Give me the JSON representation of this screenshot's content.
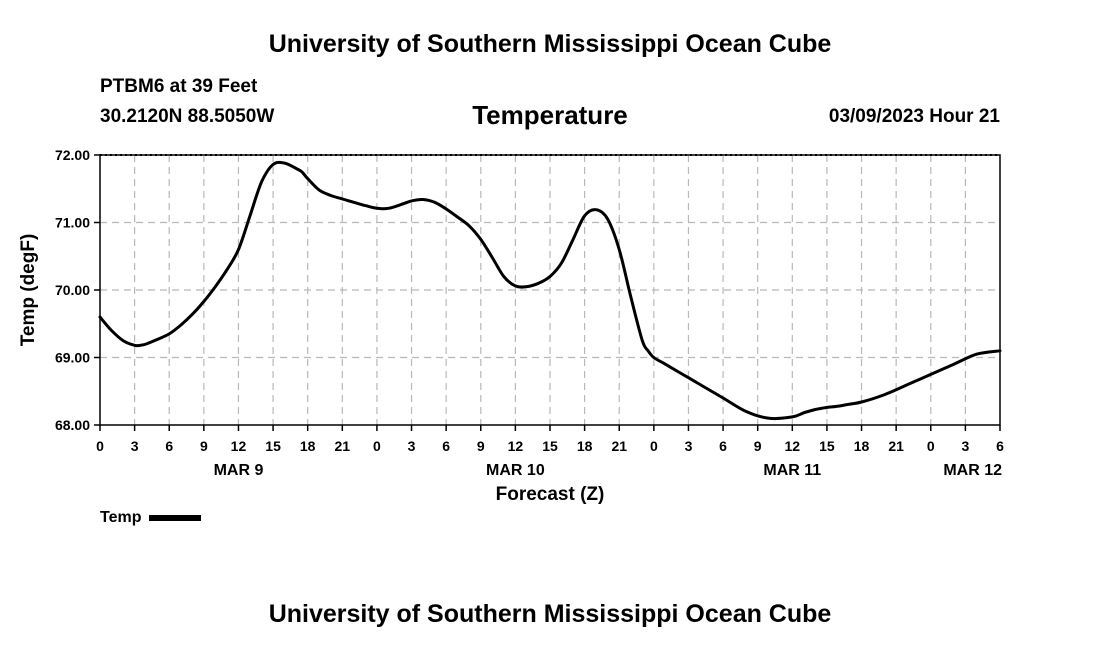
{
  "header": {
    "title": "University of Southern Mississippi Ocean Cube",
    "station": "PTBM6 at 39 Feet",
    "coords": "30.2120N  88.5050W",
    "variable": "Temperature",
    "datetime": "03/09/2023 Hour 21"
  },
  "footer": {
    "title": "University of Southern Mississippi Ocean Cube"
  },
  "legend": {
    "label": "Temp"
  },
  "chart_data": {
    "type": "line",
    "title": "Temperature",
    "xlabel": "Forecast (Z)",
    "ylabel": "Temp (degF)",
    "ylim": [
      68.0,
      72.0
    ],
    "xlim_hours": [
      0,
      78
    ],
    "grid": true,
    "y_ticks": [
      "68.00",
      "69.00",
      "70.00",
      "71.00",
      "72.00"
    ],
    "y_tick_values": [
      68,
      69,
      70,
      71,
      72
    ],
    "x_tick_labels": [
      "0",
      "3",
      "6",
      "9",
      "12",
      "15",
      "18",
      "21",
      "0",
      "3",
      "6",
      "9",
      "12",
      "15",
      "18",
      "21",
      "0",
      "3",
      "6",
      "9",
      "12",
      "15",
      "18",
      "21",
      "0",
      "3",
      "6"
    ],
    "date_labels": [
      {
        "label": "MAR 9",
        "hour": 12
      },
      {
        "label": "MAR 10",
        "hour": 36
      },
      {
        "label": "MAR 11",
        "hour": 60
      },
      {
        "label": "MAR 12",
        "hour": 78
      }
    ],
    "series": [
      {
        "name": "Temp",
        "color": "#000000",
        "x_hours": [
          0,
          1,
          2,
          3,
          3.5,
          4,
          5,
          6,
          7,
          8,
          9,
          10,
          11,
          12,
          13,
          14,
          15,
          16,
          17,
          17.5,
          18,
          19,
          20,
          21,
          22,
          23,
          24,
          25,
          26,
          27,
          28,
          29,
          30,
          31,
          32,
          33,
          34,
          35,
          36,
          37,
          38,
          39,
          40,
          41,
          42,
          43,
          44,
          45,
          46,
          47,
          47.5,
          48,
          49,
          50,
          51,
          52,
          54,
          56,
          58,
          60,
          61,
          62,
          63,
          64,
          65,
          66,
          68,
          70,
          72,
          74,
          76,
          78
        ],
        "values": [
          69.6,
          69.4,
          69.25,
          69.18,
          69.18,
          69.2,
          69.27,
          69.35,
          69.48,
          69.64,
          69.83,
          70.05,
          70.3,
          70.6,
          71.1,
          71.6,
          71.86,
          71.88,
          71.8,
          71.75,
          71.65,
          71.48,
          71.4,
          71.35,
          71.3,
          71.25,
          71.21,
          71.21,
          71.26,
          71.32,
          71.34,
          71.3,
          71.2,
          71.08,
          70.95,
          70.75,
          70.48,
          70.2,
          70.06,
          70.05,
          70.1,
          70.2,
          70.4,
          70.75,
          71.1,
          71.19,
          71.05,
          70.6,
          69.9,
          69.25,
          69.1,
          69.0,
          68.9,
          68.8,
          68.7,
          68.6,
          68.4,
          68.2,
          68.1,
          68.12,
          68.18,
          68.23,
          68.26,
          68.28,
          68.31,
          68.34,
          68.45,
          68.6,
          68.75,
          68.9,
          69.05,
          69.1
        ]
      }
    ]
  }
}
